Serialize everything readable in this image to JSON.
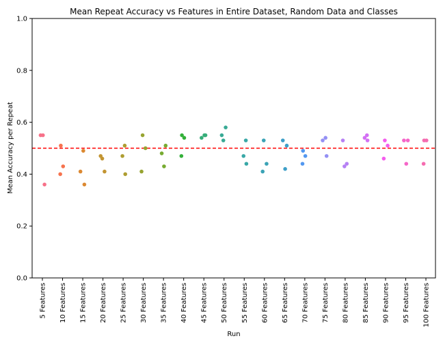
{
  "chart_data": {
    "type": "scatter",
    "title": "Mean Repeat Accuracy vs Features in Entire Dataset, Random Data and Classes",
    "xlabel": "Run",
    "ylabel": "Mean Accuracy per Repeat",
    "ylim": [
      0.0,
      1.0
    ],
    "yticks": [
      "0.0",
      "0.2",
      "0.4",
      "0.6",
      "0.8",
      "1.0"
    ],
    "categories": [
      "5 Features",
      "10 Features",
      "15 Features",
      "20 Features",
      "25 Features",
      "30 Features",
      "35 Features",
      "40 Features",
      "45 Features",
      "50 Features",
      "55 Features",
      "60 Features",
      "65 Features",
      "70 Features",
      "75 Features",
      "80 Features",
      "85 Features",
      "90 Features",
      "95 Features",
      "100 Features"
    ],
    "series": [
      {
        "color": "#f77189",
        "values": [
          0.36,
          0.55,
          0.55
        ]
      },
      {
        "color": "#f6734e",
        "values": [
          0.51,
          0.43,
          0.4
        ]
      },
      {
        "color": "#dc8932",
        "values": [
          0.49,
          0.41,
          0.36
        ]
      },
      {
        "color": "#c39532",
        "values": [
          0.47,
          0.41,
          0.46
        ]
      },
      {
        "color": "#ae9d31",
        "values": [
          0.51,
          0.47,
          0.4
        ]
      },
      {
        "color": "#97a431",
        "values": [
          0.55,
          0.5,
          0.41
        ]
      },
      {
        "color": "#77ab31",
        "values": [
          0.51,
          0.48,
          0.43
        ]
      },
      {
        "color": "#33b039",
        "values": [
          0.55,
          0.54,
          0.47
        ]
      },
      {
        "color": "#36ad79",
        "values": [
          0.55,
          0.54,
          0.55
        ]
      },
      {
        "color": "#38aa95",
        "values": [
          0.55,
          0.58,
          0.53
        ]
      },
      {
        "color": "#39a8a7",
        "values": [
          0.53,
          0.47,
          0.44
        ]
      },
      {
        "color": "#3ba3b6",
        "values": [
          0.53,
          0.44,
          0.41
        ]
      },
      {
        "color": "#3d9fc8",
        "values": [
          0.51,
          0.53,
          0.42
        ]
      },
      {
        "color": "#5398f0",
        "values": [
          0.49,
          0.47,
          0.44
        ]
      },
      {
        "color": "#9490f4",
        "values": [
          0.54,
          0.53,
          0.47
        ]
      },
      {
        "color": "#b681f4",
        "values": [
          0.53,
          0.44,
          0.43
        ]
      },
      {
        "color": "#d370f4",
        "values": [
          0.55,
          0.54,
          0.53
        ]
      },
      {
        "color": "#f45ded",
        "values": [
          0.53,
          0.51,
          0.46
        ]
      },
      {
        "color": "#f566c8",
        "values": [
          0.53,
          0.53,
          0.44
        ]
      },
      {
        "color": "#f56cb0",
        "values": [
          0.53,
          0.53,
          0.44
        ]
      }
    ],
    "reference_line": {
      "y": 0.5,
      "color": "#ff0000",
      "style": "dashed"
    },
    "grid": false,
    "legend": "none"
  }
}
